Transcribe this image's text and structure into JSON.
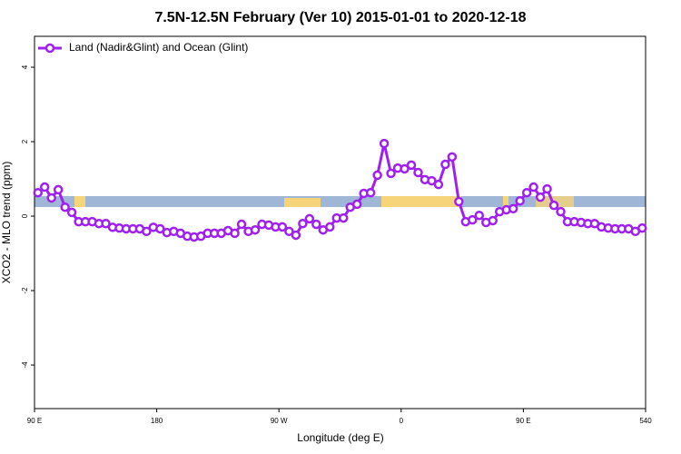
{
  "chart_data": {
    "type": "line",
    "title": "7.5N-12.5N February (Ver 10)   2015-01-01 to 2020-12-18",
    "x_label": "Longitude (deg E)",
    "y_label": "XCO2 - MLO trend (ppm)",
    "xlim": [
      90,
      540
    ],
    "ylim": [
      -5.17,
      4.83
    ],
    "xticks": [
      {
        "value": 90,
        "label": "90 E"
      },
      180,
      {
        "value": 270,
        "label": "90 W"
      },
      {
        "value": 360,
        "label": "0"
      },
      {
        "value": 450,
        "label": "90 E"
      },
      540
    ],
    "yticks": [
      -4,
      -2,
      0,
      2,
      4
    ],
    "legend": "top-left",
    "x": [
      92.5,
      97.5,
      102.5,
      107.5,
      112.5,
      117.5,
      122.5,
      127.5,
      132.5,
      137.5,
      142.5,
      147.5,
      152.5,
      157.5,
      162.5,
      167.5,
      172.5,
      177.5,
      182.5,
      187.5,
      192.5,
      197.5,
      202.5,
      207.5,
      212.5,
      217.5,
      222.5,
      227.5,
      232.5,
      237.5,
      242.5,
      247.5,
      252.5,
      257.5,
      262.5,
      267.5,
      272.5,
      277.5,
      282.5,
      287.5,
      292.5,
      297.5,
      302.5,
      307.5,
      312.5,
      317.5,
      322.5,
      327.5,
      332.5,
      337.5,
      342.5,
      347.5,
      352.5,
      357.5,
      362.5,
      367.5,
      372.5,
      377.5,
      382.5,
      387.5,
      392.5,
      397.5,
      402.5,
      407.5,
      412.5,
      417.5,
      422.5,
      427.5,
      432.5,
      437.5,
      442.5,
      447.5,
      452.5,
      457.5,
      462.5,
      467.5,
      472.5,
      477.5,
      482.5,
      487.5,
      492.5,
      497.5,
      502.5,
      507.5,
      512.5,
      517.5,
      522.5,
      527.5,
      532.5,
      537.5
    ],
    "series": [
      {
        "name": "Land (Nadir&Glint) and Ocean (Glint)",
        "color": "#a020f0",
        "values": [
          0.63,
          0.78,
          0.49,
          0.71,
          0.24,
          0.1,
          -0.15,
          -0.15,
          -0.15,
          -0.2,
          -0.2,
          -0.3,
          -0.32,
          -0.34,
          -0.34,
          -0.34,
          -0.41,
          -0.3,
          -0.34,
          -0.44,
          -0.41,
          -0.46,
          -0.54,
          -0.56,
          -0.54,
          -0.46,
          -0.46,
          -0.46,
          -0.39,
          -0.46,
          -0.22,
          -0.41,
          -0.37,
          -0.22,
          -0.24,
          -0.29,
          -0.29,
          -0.41,
          -0.51,
          -0.2,
          -0.07,
          -0.22,
          -0.37,
          -0.29,
          -0.05,
          -0.05,
          0.24,
          0.32,
          0.61,
          0.63,
          1.1,
          1.95,
          1.15,
          1.29,
          1.27,
          1.37,
          1.17,
          0.98,
          0.95,
          0.85,
          1.39,
          1.59,
          0.39,
          -0.15,
          -0.1,
          0.02,
          -0.17,
          -0.12,
          0.12,
          0.17,
          0.2,
          0.41,
          0.63,
          0.78,
          0.51,
          0.73,
          0.29,
          0.12,
          -0.15,
          -0.15,
          -0.17,
          -0.2,
          -0.2,
          -0.29,
          -0.32,
          -0.34,
          -0.34,
          -0.34,
          -0.41,
          -0.32
        ]
      }
    ]
  }
}
